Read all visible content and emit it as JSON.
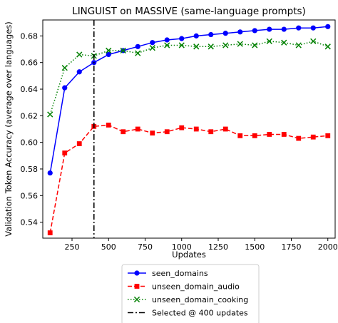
{
  "chart_data": {
    "type": "line",
    "title": "LINGUIST on MASSIVE (same-language prompts)",
    "xlabel": "Updates",
    "ylabel": "Validation Token Accuracy (average over languages)",
    "xlim": [
      50,
      2050
    ],
    "ylim": [
      0.528,
      0.692
    ],
    "xticks": [
      250,
      500,
      750,
      1000,
      1250,
      1500,
      1750,
      2000
    ],
    "yticks": [
      0.54,
      0.56,
      0.58,
      0.6,
      0.62,
      0.64,
      0.66,
      0.68
    ],
    "grid": false,
    "legend_position": "below",
    "x": [
      100,
      200,
      300,
      400,
      500,
      600,
      700,
      800,
      900,
      1000,
      1100,
      1200,
      1300,
      1400,
      1500,
      1600,
      1700,
      1800,
      1900,
      2000
    ],
    "series": [
      {
        "name": "seen_domains",
        "color": "#0000ff",
        "marker": "circle",
        "line": "solid",
        "values": [
          0.577,
          0.641,
          0.653,
          0.66,
          0.666,
          0.669,
          0.672,
          0.675,
          0.677,
          0.678,
          0.68,
          0.681,
          0.682,
          0.683,
          0.684,
          0.685,
          0.685,
          0.686,
          0.686,
          0.687
        ]
      },
      {
        "name": "unseen_domain_audio",
        "color": "#ff0000",
        "marker": "square",
        "line": "dashed",
        "values": [
          0.532,
          0.592,
          0.599,
          0.612,
          0.613,
          0.608,
          0.61,
          0.607,
          0.608,
          0.611,
          0.61,
          0.608,
          0.61,
          0.605,
          0.605,
          0.606,
          0.606,
          0.603,
          0.604,
          0.605
        ]
      },
      {
        "name": "unseen_domain_cooking",
        "color": "#008000",
        "marker": "x",
        "line": "dotted",
        "values": [
          0.621,
          0.656,
          0.666,
          0.665,
          0.669,
          0.669,
          0.667,
          0.671,
          0.673,
          0.673,
          0.672,
          0.672,
          0.673,
          0.674,
          0.673,
          0.676,
          0.675,
          0.673,
          0.676,
          0.672
        ]
      }
    ],
    "annotations": [
      {
        "type": "vline",
        "x": 400,
        "name": "Selected @ 400 updates",
        "color": "#000000",
        "line": "dashdot"
      }
    ]
  }
}
